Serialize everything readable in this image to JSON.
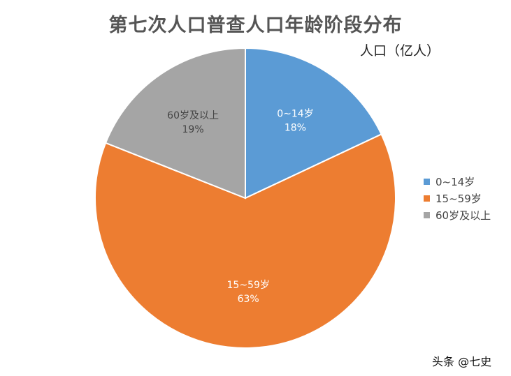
{
  "chart_data": {
    "type": "pie",
    "title": "第七次人口普查人口年龄阶段分布",
    "subtitle": "人口（亿人）",
    "categories": [
      "0~14岁",
      "15~59岁",
      "60岁及以上"
    ],
    "values": [
      18,
      63,
      19
    ],
    "percent_labels": [
      "18%",
      "63%",
      "19%"
    ],
    "colors": [
      "#5b9bd5",
      "#ed7d31",
      "#a5a5a5"
    ],
    "legend_position": "right"
  },
  "watermark": "头条 @七史"
}
